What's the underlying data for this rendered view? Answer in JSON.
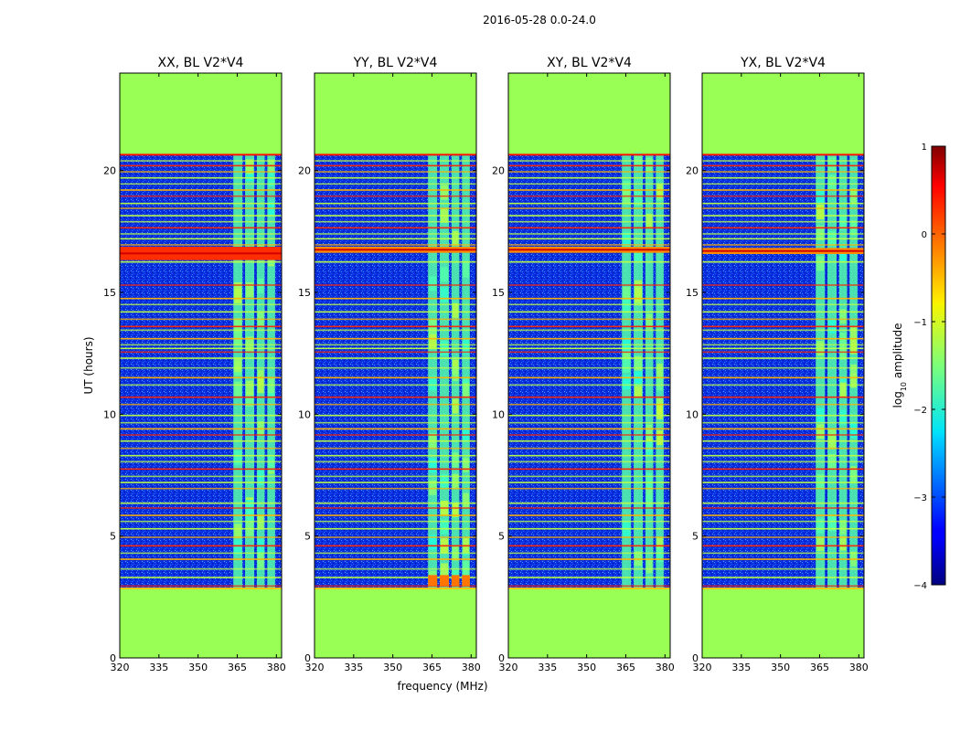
{
  "figure": {
    "suptitle": "2016-05-28 0.0-24.0"
  },
  "chart_data": {
    "type": "heatmap",
    "x": {
      "label": "frequency (MHz)",
      "range": [
        320,
        382
      ],
      "ticks": [
        320,
        335,
        350,
        365,
        380
      ]
    },
    "y": {
      "label": "UT (hours)",
      "range": [
        0,
        24
      ],
      "ticks": [
        0,
        5,
        10,
        15,
        20
      ]
    },
    "data_window_hours": [
      2.85,
      20.65
    ],
    "signal_band_mhz": [
      363,
      380
    ],
    "signal_subbands_mhz": [
      [
        363.5,
        367
      ],
      [
        368,
        371.5
      ],
      [
        372.5,
        375.5
      ],
      [
        376.5,
        379.5
      ]
    ],
    "flagged_color": "#99ff55",
    "panels": [
      {
        "title": "XX, BL V2*V4",
        "rfi_hour": 16.6,
        "bright_rfi": true,
        "hot_start": false
      },
      {
        "title": "YY, BL V2*V4",
        "rfi_hour": 16.75,
        "bright_rfi": false,
        "hot_start": true
      },
      {
        "title": "XY, BL V2*V4",
        "rfi_hour": 16.75,
        "bright_rfi": false,
        "hot_start": false
      },
      {
        "title": "YX, BL V2*V4",
        "rfi_hour": 16.7,
        "bright_rfi": false,
        "hot_start": false
      }
    ],
    "colorbar": {
      "label_prefix": "log",
      "label_sub": "10",
      "label_suffix": " amplitude",
      "min": -4,
      "max": 1,
      "ticks": [
        "1",
        "0",
        "−1",
        "−2",
        "−3",
        "−4"
      ],
      "tick_values": [
        1,
        0,
        -1,
        -2,
        -3,
        -4
      ],
      "colormap": "jet"
    },
    "horizontal_lines_hours": [
      2.95,
      3.3,
      3.65,
      4.05,
      4.3,
      4.6,
      4.95,
      5.3,
      5.6,
      5.85,
      6.15,
      6.35,
      6.95,
      7.2,
      7.45,
      7.75,
      8.05,
      8.3,
      8.6,
      8.9,
      9.15,
      9.4,
      9.65,
      9.95,
      10.4,
      10.7,
      11.2,
      11.5,
      11.9,
      12.3,
      12.55,
      12.7,
      12.85,
      13.1,
      13.45,
      13.6,
      13.9,
      14.2,
      14.5,
      14.75,
      15.3,
      16.25,
      16.95,
      17.2,
      17.4,
      17.65,
      17.9,
      18.15,
      18.45,
      18.65,
      18.95,
      19.2,
      19.45,
      19.7,
      19.95,
      20.2,
      20.4
    ]
  }
}
